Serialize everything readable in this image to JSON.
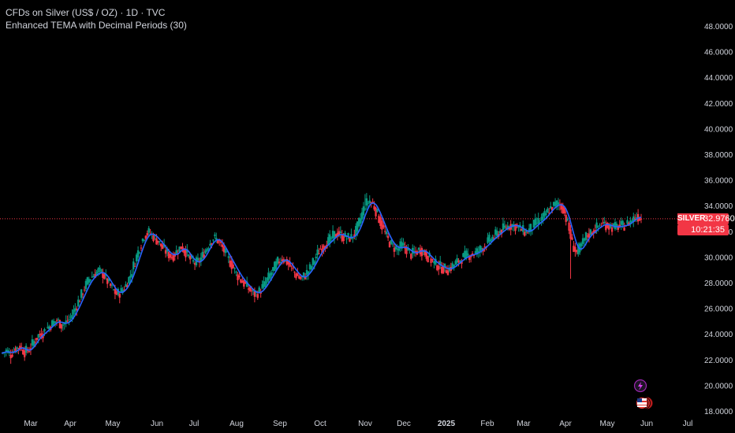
{
  "header": {
    "symbol_line": "CFDs on Silver (US$ / OZ) · 1D · TVC",
    "indicator_line": "Enhanced TEMA with Decimal Periods (30)"
  },
  "price_badge": {
    "symbol": "SILVER",
    "price": "32.9760",
    "countdown": "10:21:35",
    "color": "#f23645"
  },
  "colors": {
    "background": "#000000",
    "up": "#089981",
    "down": "#f23645",
    "tema_line": "#2962ff",
    "price_line": "#f23645",
    "axis_text": "#d1d4dc"
  },
  "icons": [
    "lightning-icon",
    "us-flag-icon"
  ],
  "chart_data": {
    "type": "candlestick",
    "title": "CFDs on Silver (US$ / OZ) · 1D · TVC",
    "ylim": [
      18,
      49
    ],
    "y_ticks": [
      "48.0000",
      "46.0000",
      "44.0000",
      "42.0000",
      "40.0000",
      "38.0000",
      "36.0000",
      "34.0000",
      "32.0000",
      "30.0000",
      "28.0000",
      "26.0000",
      "24.0000",
      "22.0000",
      "20.0000",
      "18.0000"
    ],
    "x_ticks": [
      "Mar",
      "Apr",
      "May",
      "Jun",
      "Jul",
      "Aug",
      "Sep",
      "Oct",
      "Nov",
      "Dec",
      "2025",
      "Feb",
      "Mar",
      "Apr",
      "May",
      "Jun",
      "Jul"
    ],
    "current_price": 32.976,
    "series": [
      {
        "name": "Enhanced TEMA with Decimal Periods (30)",
        "type": "line"
      }
    ],
    "ohlc_close_path": [
      [
        0,
        22.5
      ],
      [
        3,
        22.7
      ],
      [
        6,
        22.4
      ],
      [
        9,
        22.9
      ],
      [
        12,
        23.0
      ],
      [
        15,
        22.6
      ],
      [
        18,
        22.8
      ],
      [
        21,
        23.4
      ],
      [
        24,
        23.9
      ],
      [
        27,
        24.1
      ],
      [
        30,
        24.5
      ],
      [
        33,
        24.8
      ],
      [
        36,
        25.1
      ],
      [
        39,
        24.7
      ],
      [
        42,
        24.9
      ],
      [
        45,
        25.3
      ],
      [
        48,
        26.0
      ],
      [
        51,
        26.8
      ],
      [
        54,
        27.6
      ],
      [
        57,
        28.3
      ],
      [
        60,
        28.6
      ],
      [
        63,
        28.9
      ],
      [
        66,
        28.7
      ],
      [
        69,
        28.1
      ],
      [
        72,
        27.5
      ],
      [
        75,
        27.1
      ],
      [
        78,
        27.3
      ],
      [
        81,
        27.8
      ],
      [
        84,
        28.6
      ],
      [
        87,
        29.7
      ],
      [
        90,
        30.8
      ],
      [
        93,
        31.7
      ],
      [
        96,
        31.9
      ],
      [
        99,
        31.6
      ],
      [
        102,
        31.2
      ],
      [
        105,
        30.7
      ],
      [
        108,
        30.3
      ],
      [
        111,
        30.0
      ],
      [
        114,
        30.4
      ],
      [
        117,
        30.8
      ],
      [
        120,
        30.4
      ],
      [
        123,
        29.8
      ],
      [
        126,
        29.5
      ],
      [
        129,
        29.7
      ],
      [
        132,
        30.3
      ],
      [
        135,
        31.0
      ],
      [
        138,
        31.5
      ],
      [
        141,
        31.3
      ],
      [
        144,
        30.7
      ],
      [
        147,
        30.0
      ],
      [
        150,
        29.4
      ],
      [
        153,
        28.7
      ],
      [
        156,
        28.2
      ],
      [
        159,
        27.8
      ],
      [
        162,
        27.4
      ],
      [
        165,
        27.1
      ],
      [
        168,
        27.3
      ],
      [
        171,
        27.8
      ],
      [
        174,
        28.4
      ],
      [
        177,
        29.0
      ],
      [
        180,
        29.6
      ],
      [
        183,
        29.9
      ],
      [
        186,
        29.6
      ],
      [
        189,
        29.1
      ],
      [
        192,
        28.6
      ],
      [
        195,
        28.3
      ],
      [
        198,
        28.6
      ],
      [
        201,
        29.1
      ],
      [
        204,
        29.8
      ],
      [
        207,
        30.5
      ],
      [
        210,
        30.9
      ],
      [
        213,
        31.2
      ],
      [
        216,
        31.6
      ],
      [
        219,
        31.9
      ],
      [
        222,
        31.6
      ],
      [
        225,
        31.5
      ],
      [
        228,
        31.5
      ],
      [
        231,
        32.0
      ],
      [
        234,
        33.0
      ],
      [
        237,
        34.1
      ],
      [
        240,
        34.4
      ],
      [
        243,
        33.9
      ],
      [
        246,
        33.0
      ],
      [
        249,
        32.1
      ],
      [
        252,
        31.3
      ],
      [
        255,
        30.8
      ],
      [
        258,
        30.6
      ],
      [
        261,
        30.9
      ],
      [
        264,
        30.6
      ],
      [
        267,
        30.2
      ],
      [
        270,
        30.4
      ],
      [
        273,
        30.6
      ],
      [
        276,
        30.3
      ],
      [
        279,
        29.9
      ],
      [
        282,
        29.5
      ],
      [
        285,
        29.3
      ],
      [
        288,
        29.1
      ],
      [
        291,
        29.0
      ],
      [
        294,
        29.3
      ],
      [
        297,
        29.6
      ],
      [
        300,
        29.9
      ],
      [
        303,
        30.1
      ],
      [
        306,
        30.2
      ],
      [
        309,
        30.3
      ],
      [
        312,
        30.6
      ],
      [
        315,
        30.9
      ],
      [
        318,
        31.3
      ],
      [
        321,
        31.6
      ],
      [
        324,
        31.9
      ],
      [
        327,
        32.2
      ],
      [
        330,
        32.4
      ],
      [
        333,
        32.5
      ],
      [
        336,
        32.4
      ],
      [
        339,
        32.1
      ],
      [
        342,
        31.9
      ],
      [
        345,
        32.2
      ],
      [
        348,
        32.6
      ],
      [
        351,
        32.8
      ],
      [
        354,
        33.2
      ],
      [
        357,
        33.7
      ],
      [
        360,
        34.0
      ],
      [
        363,
        34.2
      ],
      [
        366,
        33.8
      ],
      [
        369,
        32.6
      ],
      [
        372,
        31.0
      ],
      [
        375,
        30.3
      ],
      [
        378,
        30.9
      ],
      [
        381,
        31.6
      ],
      [
        384,
        31.9
      ],
      [
        387,
        32.2
      ],
      [
        390,
        32.5
      ],
      [
        393,
        32.6
      ],
      [
        396,
        32.4
      ],
      [
        399,
        32.3
      ],
      [
        402,
        32.4
      ],
      [
        405,
        32.4
      ],
      [
        408,
        32.6
      ],
      [
        411,
        32.9
      ],
      [
        414,
        33.2
      ],
      [
        417,
        33.0
      ]
    ]
  }
}
